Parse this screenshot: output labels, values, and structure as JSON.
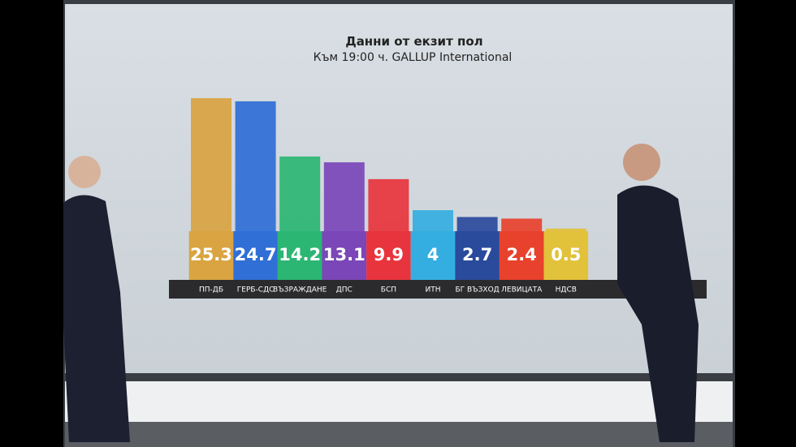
{
  "chart_data": {
    "type": "bar",
    "title": "Данни от екзит пол",
    "subtitle": "Към 19:00 ч.  GALLUP International",
    "categories": [
      "ПП-ДБ",
      "ГЕРБ-СДС",
      "ВЪЗРАЖДАНЕ",
      "ДПС",
      "БСП",
      "ИТН",
      "БГ ВЪЗХОД",
      "ЛЕВИЦАТА",
      "НДСВ"
    ],
    "values": [
      25.3,
      24.7,
      14.2,
      13.1,
      9.9,
      4,
      2.7,
      2.4,
      0.5
    ],
    "colors": [
      "#d9a441",
      "#2f6fd6",
      "#2bb673",
      "#7b46b8",
      "#e8343c",
      "#34aee0",
      "#2a4a9c",
      "#e8412c",
      "#e2c23a"
    ],
    "ylim": [
      0,
      25.3
    ]
  }
}
